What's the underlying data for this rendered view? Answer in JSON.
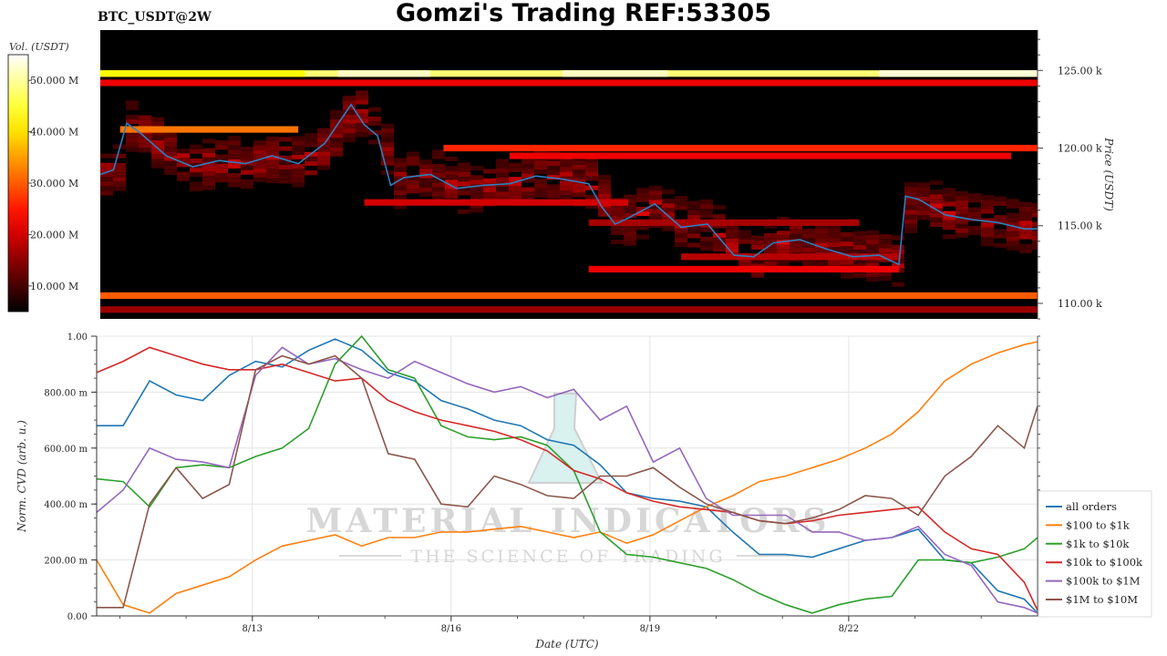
{
  "header": {
    "title": "Gomzi's Trading REF:53305",
    "symbol": "BTC_USDT@2W"
  },
  "chart_data": [
    {
      "type": "heatmap",
      "ylabel": "Price (USDT)",
      "y_ticks": [
        110,
        115,
        120,
        125
      ],
      "y_tick_labels": [
        "110.00 k",
        "115.00 k",
        "120.00 k",
        "125.00 k"
      ],
      "ylim": [
        109,
        127.6
      ],
      "xlim": [
        0,
        14.2
      ],
      "colorbar": {
        "label": "Vol. (USDT)",
        "ticks": [
          10,
          20,
          30,
          40,
          50
        ],
        "tick_labels": [
          "10.000 M",
          "20.000 M",
          "30.000 M",
          "40.000 M",
          "50.000 M"
        ],
        "range": [
          5,
          55
        ],
        "colormap": "hot"
      },
      "bands": [
        {
          "price": 124.8,
          "from": 0,
          "to": 14.2,
          "vol": 48
        },
        {
          "price": 124.2,
          "from": 0,
          "to": 14.2,
          "vol": 22
        },
        {
          "price": 121.2,
          "from": 0.3,
          "to": 3.0,
          "vol": 32
        },
        {
          "price": 120.0,
          "from": 5.2,
          "to": 14.2,
          "vol": 26
        },
        {
          "price": 119.5,
          "from": 6.2,
          "to": 13.8,
          "vol": 22
        },
        {
          "price": 116.5,
          "from": 4.0,
          "to": 8.0,
          "vol": 20
        },
        {
          "price": 115.2,
          "from": 7.4,
          "to": 11.5,
          "vol": 17
        },
        {
          "price": 113.0,
          "from": 8.8,
          "to": 12.1,
          "vol": 18
        },
        {
          "price": 112.2,
          "from": 7.4,
          "to": 12.1,
          "vol": 22
        },
        {
          "price": 110.5,
          "from": 0,
          "to": 14.2,
          "vol": 30
        },
        {
          "price": 109.6,
          "from": 0,
          "to": 14.2,
          "vol": 16
        }
      ],
      "series": [
        {
          "color": "#2f7fc1",
          "x": [
            0,
            0.2,
            0.4,
            0.6,
            1.0,
            1.4,
            1.8,
            2.2,
            2.6,
            3.0,
            3.4,
            3.8,
            4.0,
            4.2,
            4.4,
            4.6,
            5.0,
            5.4,
            5.8,
            6.2,
            6.6,
            7.0,
            7.4,
            7.6,
            7.8,
            8.0,
            8.4,
            8.8,
            9.2,
            9.6,
            9.9,
            10.2,
            10.6,
            11.0,
            11.4,
            11.8,
            12.1,
            12.2,
            12.4,
            12.8,
            13.2,
            13.6,
            14.0,
            14.2
          ],
          "y": [
            118.3,
            118.6,
            121.6,
            121.0,
            119.5,
            118.8,
            119.2,
            119.0,
            119.5,
            119.0,
            120.3,
            122.8,
            121.5,
            120.8,
            117.6,
            118.1,
            118.3,
            117.4,
            117.6,
            117.7,
            118.2,
            118.0,
            117.7,
            116.2,
            115.1,
            115.5,
            116.4,
            114.9,
            115.1,
            113.1,
            113.0,
            113.9,
            114.1,
            113.5,
            113.0,
            113.1,
            112.5,
            116.9,
            116.7,
            115.7,
            115.4,
            115.2,
            114.8,
            114.8
          ]
        }
      ]
    },
    {
      "type": "line",
      "ylabel": "Norm. CVD (arb. u.)",
      "xlabel": "Date (UTC)",
      "xlim": [
        0,
        14.2
      ],
      "ylim": [
        0,
        1.0
      ],
      "x_ticks": [
        2.35,
        5.35,
        8.35,
        11.35
      ],
      "x_tick_labels": [
        "8/13",
        "8/16",
        "8/19",
        "8/22"
      ],
      "y_ticks": [
        0,
        0.2,
        0.4,
        0.6,
        0.8,
        1.0
      ],
      "y_tick_labels": [
        "0.00",
        "200.00 m",
        "400.00 m",
        "600.00 m",
        "800.00 m",
        "1.00"
      ],
      "grid": true,
      "legend": "right",
      "x": [
        0,
        0.4,
        0.8,
        1.2,
        1.6,
        2.0,
        2.4,
        2.8,
        3.2,
        3.6,
        4.0,
        4.4,
        4.8,
        5.2,
        5.6,
        6.0,
        6.4,
        6.8,
        7.2,
        7.6,
        8.0,
        8.4,
        8.8,
        9.2,
        9.6,
        10.0,
        10.4,
        10.8,
        11.2,
        11.6,
        12.0,
        12.4,
        12.8,
        13.2,
        13.6,
        14.0,
        14.2
      ],
      "series": [
        {
          "name": "all orders",
          "color": "#1f77b4",
          "values": [
            0.68,
            0.68,
            0.84,
            0.79,
            0.77,
            0.86,
            0.91,
            0.89,
            0.95,
            0.99,
            0.95,
            0.87,
            0.84,
            0.77,
            0.74,
            0.7,
            0.68,
            0.63,
            0.61,
            0.54,
            0.44,
            0.42,
            0.41,
            0.39,
            0.3,
            0.22,
            0.22,
            0.21,
            0.24,
            0.27,
            0.28,
            0.31,
            0.2,
            0.19,
            0.09,
            0.06,
            0.01
          ]
        },
        {
          "name": "$100 to $1k",
          "color": "#ff7f0e",
          "values": [
            0.2,
            0.04,
            0.01,
            0.08,
            0.11,
            0.14,
            0.2,
            0.25,
            0.27,
            0.29,
            0.25,
            0.28,
            0.28,
            0.3,
            0.3,
            0.31,
            0.32,
            0.3,
            0.28,
            0.3,
            0.26,
            0.29,
            0.34,
            0.39,
            0.43,
            0.48,
            0.5,
            0.53,
            0.56,
            0.6,
            0.65,
            0.73,
            0.84,
            0.9,
            0.94,
            0.97,
            0.98
          ]
        },
        {
          "name": "$1k to $10k",
          "color": "#2ca02c",
          "values": [
            0.49,
            0.48,
            0.39,
            0.53,
            0.54,
            0.53,
            0.57,
            0.6,
            0.67,
            0.9,
            1.0,
            0.88,
            0.85,
            0.68,
            0.64,
            0.63,
            0.64,
            0.61,
            0.52,
            0.3,
            0.22,
            0.21,
            0.19,
            0.17,
            0.13,
            0.08,
            0.04,
            0.01,
            0.04,
            0.06,
            0.07,
            0.2,
            0.2,
            0.19,
            0.21,
            0.24,
            0.28
          ]
        },
        {
          "name": "$10k to $100k",
          "color": "#d62728",
          "values": [
            0.87,
            0.91,
            0.96,
            0.93,
            0.9,
            0.88,
            0.88,
            0.9,
            0.87,
            0.84,
            0.85,
            0.77,
            0.73,
            0.7,
            0.68,
            0.66,
            0.63,
            0.59,
            0.52,
            0.49,
            0.44,
            0.41,
            0.39,
            0.38,
            0.37,
            0.34,
            0.33,
            0.34,
            0.36,
            0.37,
            0.38,
            0.39,
            0.3,
            0.24,
            0.22,
            0.12,
            0.02
          ]
        },
        {
          "name": "$100k to $1M",
          "color": "#9467bd",
          "values": [
            0.37,
            0.45,
            0.6,
            0.56,
            0.55,
            0.53,
            0.86,
            0.96,
            0.9,
            0.92,
            0.88,
            0.85,
            0.91,
            0.87,
            0.83,
            0.8,
            0.82,
            0.78,
            0.81,
            0.7,
            0.75,
            0.55,
            0.6,
            0.42,
            0.36,
            0.36,
            0.36,
            0.3,
            0.3,
            0.27,
            0.28,
            0.32,
            0.22,
            0.18,
            0.05,
            0.03,
            0.01
          ]
        },
        {
          "name": "$1M to $10M",
          "color": "#8c564b",
          "values": [
            0.03,
            0.03,
            0.4,
            0.53,
            0.42,
            0.47,
            0.88,
            0.93,
            0.9,
            0.93,
            0.85,
            0.58,
            0.56,
            0.4,
            0.39,
            0.5,
            0.47,
            0.43,
            0.42,
            0.5,
            0.5,
            0.53,
            0.46,
            0.4,
            0.37,
            0.34,
            0.33,
            0.35,
            0.38,
            0.43,
            0.42,
            0.36,
            0.5,
            0.57,
            0.68,
            0.6,
            0.75
          ]
        }
      ]
    }
  ],
  "watermark": {
    "line1": "MATERIAL INDICATORS",
    "line2": "THE SCIENCE OF TRADING"
  }
}
